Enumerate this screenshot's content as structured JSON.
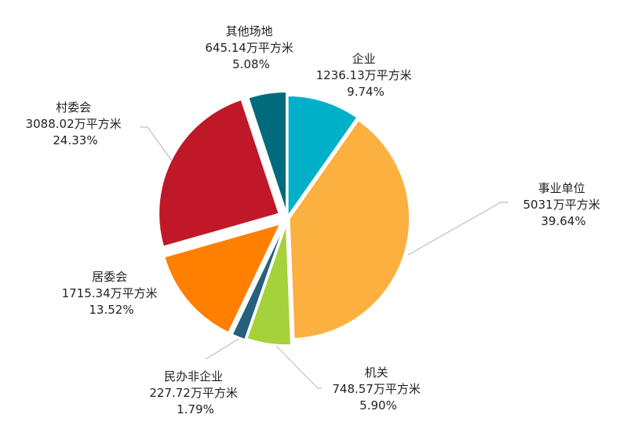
{
  "chart_data": {
    "type": "pie",
    "slices": [
      {
        "name": "企业",
        "amount": "1236.13万平方米",
        "percent": "9.74%",
        "value": 9.74,
        "color": "#00b0c8"
      },
      {
        "name": "事业单位",
        "amount": "5031万平方米",
        "percent": "39.64%",
        "value": 39.64,
        "color": "#fbb040"
      },
      {
        "name": "机关",
        "amount": "748.57万平方米",
        "percent": "5.90%",
        "value": 5.9,
        "color": "#a5d13a"
      },
      {
        "name": "民办非企业",
        "amount": "227.72万平方米",
        "percent": "1.79%",
        "value": 1.79,
        "color": "#27607f"
      },
      {
        "name": "居委会",
        "amount": "1715.34万平方米",
        "percent": "13.52%",
        "value": 13.52,
        "color": "#ff7f00"
      },
      {
        "name": "村委会",
        "amount": "3088.02万平方米",
        "percent": "24.33%",
        "value": 24.33,
        "color": "#c01828"
      },
      {
        "name": "其他场地",
        "amount": "645.14万平方米",
        "percent": "5.08%",
        "value": 5.08,
        "color": "#006b7d"
      }
    ]
  }
}
